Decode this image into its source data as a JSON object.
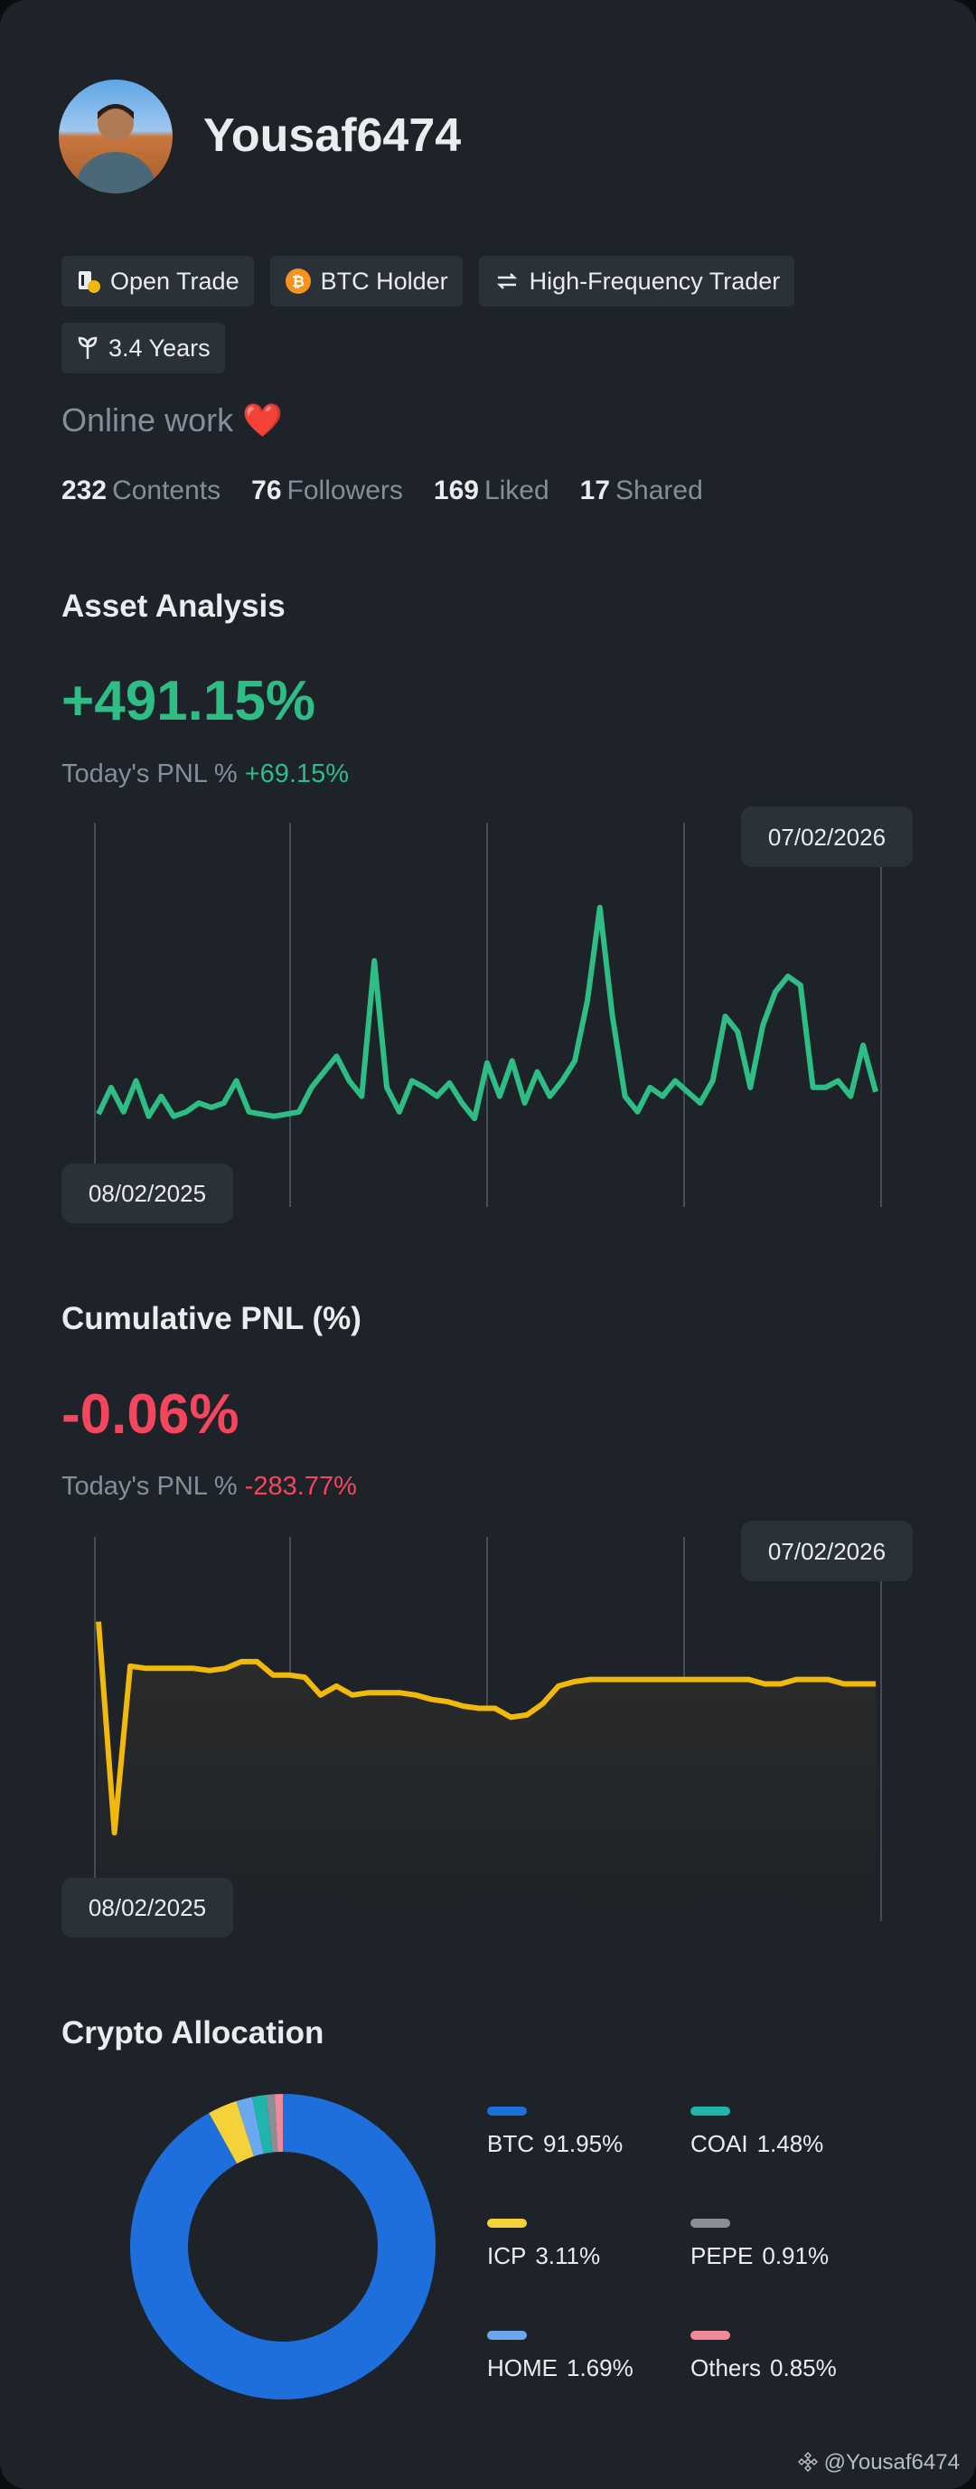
{
  "profile": {
    "username": "Yousaf6474",
    "tags": [
      "Open Trade",
      "BTC Holder",
      "High-Frequency Trader",
      "3.4 Years"
    ],
    "bio": {
      "text": "Online work",
      "emoji": "❤️"
    },
    "stats": [
      {
        "value": 232,
        "label": "Contents"
      },
      {
        "value": 76,
        "label": "Followers"
      },
      {
        "value": 169,
        "label": "Liked"
      },
      {
        "value": 17,
        "label": "Shared"
      }
    ],
    "footer": "@Yousaf6474"
  },
  "sections": [
    {
      "title": "Asset Analysis",
      "total": "+491.15%",
      "today_label": "Today's PNL %",
      "today_value": "+69.15%",
      "tone": "#2ebd85"
    },
    {
      "title": "Cumulative PNL (%)",
      "total": "-0.06%",
      "today_label": "Today's PNL %",
      "today_value": "-283.77%",
      "tone": "#f6465d"
    }
  ],
  "chart_data": [
    {
      "type": "line",
      "color": "#2ebd85",
      "x_labels": [
        "08/02/2025",
        "07/02/2026"
      ],
      "values": [
        6,
        18,
        7,
        21,
        5,
        14,
        5,
        7,
        11,
        9,
        11,
        21,
        7,
        6,
        5,
        6,
        7,
        18,
        25,
        32,
        21,
        14,
        75,
        18,
        7,
        21,
        18,
        14,
        20,
        11,
        4,
        29,
        14,
        30,
        11,
        25,
        14,
        21,
        30,
        57,
        99,
        50,
        14,
        7,
        18,
        14,
        21,
        16,
        11,
        21,
        50,
        43,
        18,
        46,
        61,
        68,
        64,
        18,
        18,
        21,
        14,
        37,
        16
      ]
    },
    {
      "type": "area",
      "color": "#f0b90b",
      "x_labels": [
        "08/02/2025",
        "07/02/2026"
      ],
      "values": [
        99,
        4,
        79,
        78,
        78,
        78,
        78,
        77,
        78,
        81,
        81,
        75,
        75,
        74,
        66,
        70,
        66,
        67,
        67,
        67,
        66,
        64,
        63,
        61,
        60,
        60,
        56,
        57,
        62,
        70,
        72,
        73,
        73,
        73,
        73,
        73,
        73,
        73,
        73,
        73,
        73,
        73,
        71,
        71,
        73,
        73,
        73,
        71,
        71,
        71
      ]
    },
    {
      "type": "pie",
      "title": "Crypto Allocation",
      "categories": [
        "BTC",
        "ICP",
        "HOME",
        "COAI",
        "PEPE",
        "Others"
      ],
      "values": [
        91.95,
        3.11,
        1.69,
        1.48,
        0.91,
        0.85
      ],
      "value_labels": [
        "91.95%",
        "3.11%",
        "1.69%",
        "1.48%",
        "0.91%",
        "0.85%"
      ],
      "colors": [
        "#1e6fdc",
        "#f5d13a",
        "#6aa8f0",
        "#1fb5ac",
        "#8a8e96",
        "#f08a9a"
      ]
    }
  ]
}
